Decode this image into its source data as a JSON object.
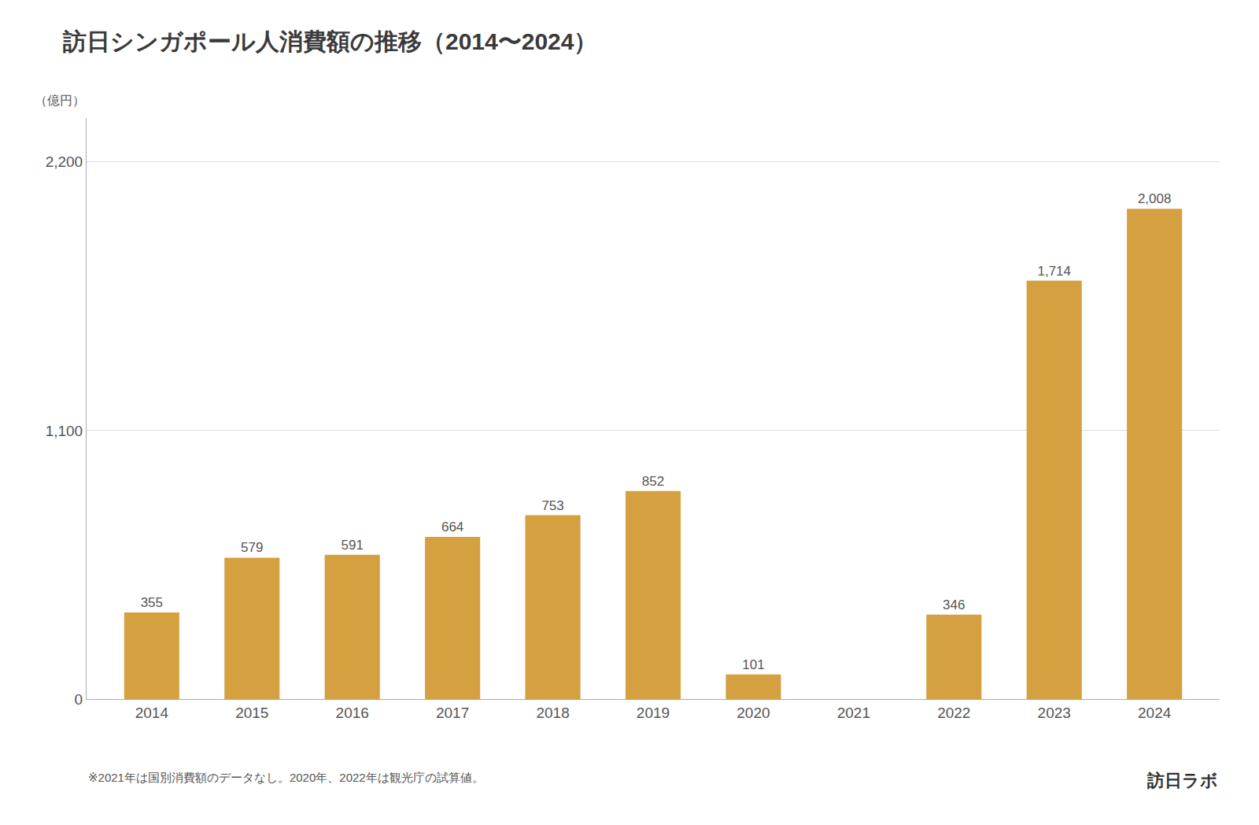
{
  "chart_data": {
    "type": "bar",
    "title": "訪日シンガポール人消費額の推移（2014〜2024）",
    "ylabel": "（億円）",
    "categories": [
      "2014",
      "2015",
      "2016",
      "2017",
      "2018",
      "2019",
      "2020",
      "2021",
      "2022",
      "2023",
      "2024"
    ],
    "values": [
      355,
      579,
      591,
      664,
      753,
      852,
      101,
      0,
      346,
      1714,
      2008
    ],
    "value_labels": [
      "355",
      "579",
      "591",
      "664",
      "753",
      "852",
      "101",
      null,
      "346",
      "1,714",
      "2,008"
    ],
    "data_labels": true,
    "color": "#D4A040",
    "ylim": [
      0,
      2380
    ],
    "yticks": [
      0,
      {
        "value": 1100,
        "label": "1,100"
      },
      {
        "value": 2200,
        "label": "2,200"
      }
    ],
    "grid": true,
    "annotations": [
      "※2021年は国別消費額のデータなし。2020年、2022年は観光庁の試算値。",
      "訪日ラボ"
    ]
  }
}
